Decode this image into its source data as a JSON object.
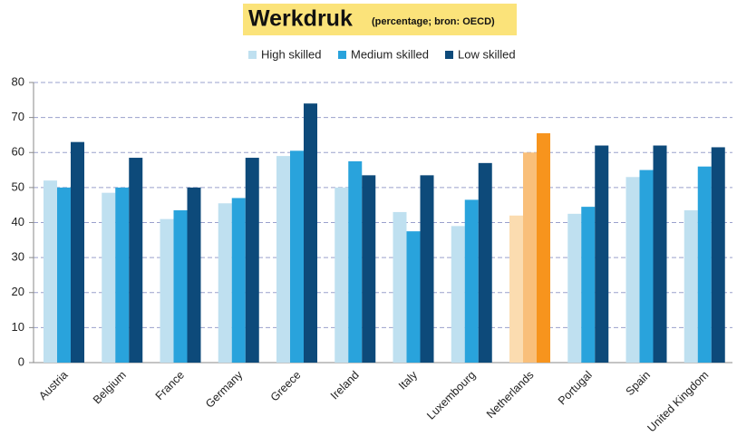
{
  "chart_data": {
    "type": "bar",
    "title": "Werkdruk",
    "subtitle": "(percentage; bron: OECD)",
    "categories": [
      "Austria",
      "Belgium",
      "France",
      "Germany",
      "Greece",
      "Ireland",
      "Italy",
      "Luxembourg",
      "Netherlands",
      "Portugal",
      "Spain",
      "United Kingdom"
    ],
    "series": [
      {
        "name": "High skilled",
        "color": "#bfe0f0",
        "values": [
          52,
          48.5,
          41,
          45.5,
          59,
          50,
          43,
          39,
          42,
          42.5,
          53,
          43.5
        ]
      },
      {
        "name": "Medium skilled",
        "color": "#29a3dc",
        "values": [
          50,
          50,
          43.5,
          47,
          60.5,
          57.5,
          37.5,
          46.5,
          60,
          44.5,
          55,
          56
        ]
      },
      {
        "name": "Low skilled",
        "color": "#0d4a7a",
        "values": [
          63,
          58.5,
          50,
          58.5,
          74,
          53.5,
          53.5,
          57,
          65.5,
          62,
          62,
          61.5
        ]
      }
    ],
    "highlight": {
      "index": 8,
      "colors": [
        "#fbdcb0",
        "#f9bf7a",
        "#f7941d"
      ]
    },
    "ylim": [
      0,
      80
    ],
    "yticks": [
      0,
      10,
      20,
      30,
      40,
      50,
      60,
      70,
      80
    ],
    "grid": true
  }
}
